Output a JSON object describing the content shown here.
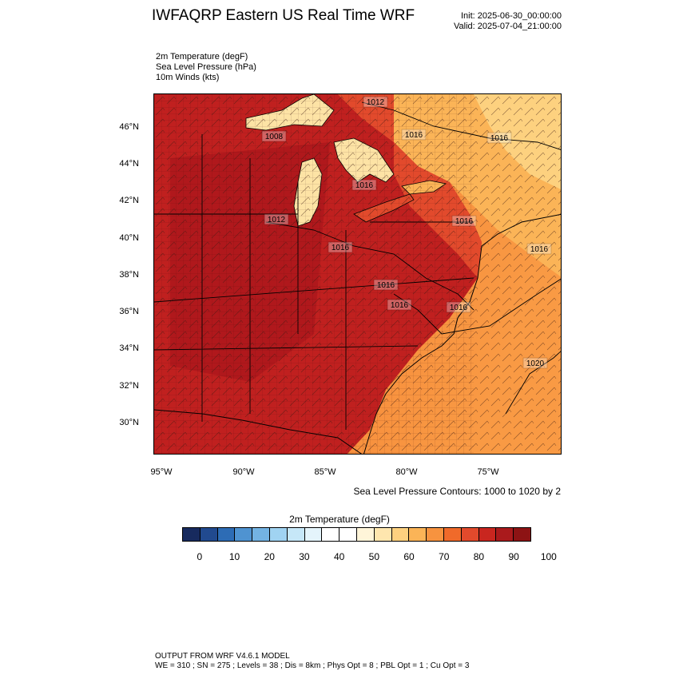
{
  "header": {
    "title": "IWFAQRP Eastern US Real Time WRF",
    "init": "Init: 2025-06-30_00:00:00",
    "valid": "Valid: 2025-07-04_21:00:00"
  },
  "fields": [
    "2m Temperature   (degF)",
    "Sea Level Pressure   (hPa)",
    "10m Winds   (kts)"
  ],
  "map": {
    "lat_labels": [
      "46°N",
      "44°N",
      "42°N",
      "40°N",
      "38°N",
      "36°N",
      "34°N",
      "32°N",
      "30°N"
    ],
    "lon_labels": [
      "95°W",
      "90°W",
      "85°W",
      "80°W",
      "75°W"
    ],
    "pressure_labels": [
      "1012",
      "1016",
      "1016",
      "1008",
      "1016",
      "1012",
      "1016",
      "1016",
      "1016",
      "1016",
      "1016",
      "1016",
      "1020"
    ],
    "colors": {
      "hot_dark": "#a5141a",
      "hot": "#c0201f",
      "warm": "#e24a2c",
      "orange": "#f06a2a",
      "light_orange": "#f7933f",
      "yellow_orange": "#fbb457",
      "pale": "#fde3a5",
      "white": "#ffffff"
    }
  },
  "contour_note": "Sea Level Pressure Contours: 1000 to 1020 by 2",
  "colorbar": {
    "title": "2m Temperature  (degF)",
    "colors": [
      "#172a5e",
      "#214a8f",
      "#2d6cb5",
      "#4f93d1",
      "#73b3e3",
      "#a0d3f2",
      "#c6e7f8",
      "#e4f4fb",
      "#ffffff",
      "#ffffff",
      "#fff5d9",
      "#fee6ae",
      "#fdd17f",
      "#fbb457",
      "#f7933f",
      "#f06a2a",
      "#e24a2c",
      "#c9261f",
      "#aa1a1c",
      "#8d1314"
    ],
    "labels": [
      "0",
      "10",
      "20",
      "30",
      "40",
      "50",
      "60",
      "70",
      "80",
      "90",
      "100"
    ]
  },
  "footer": {
    "line1": "OUTPUT FROM WRF V4.6.1 MODEL",
    "line2": "WE = 310 ; SN = 275 ; Levels = 38 ; Dis = 8km ; Phys Opt = 8 ; PBL Opt = 1 ; Cu Opt = 3"
  }
}
